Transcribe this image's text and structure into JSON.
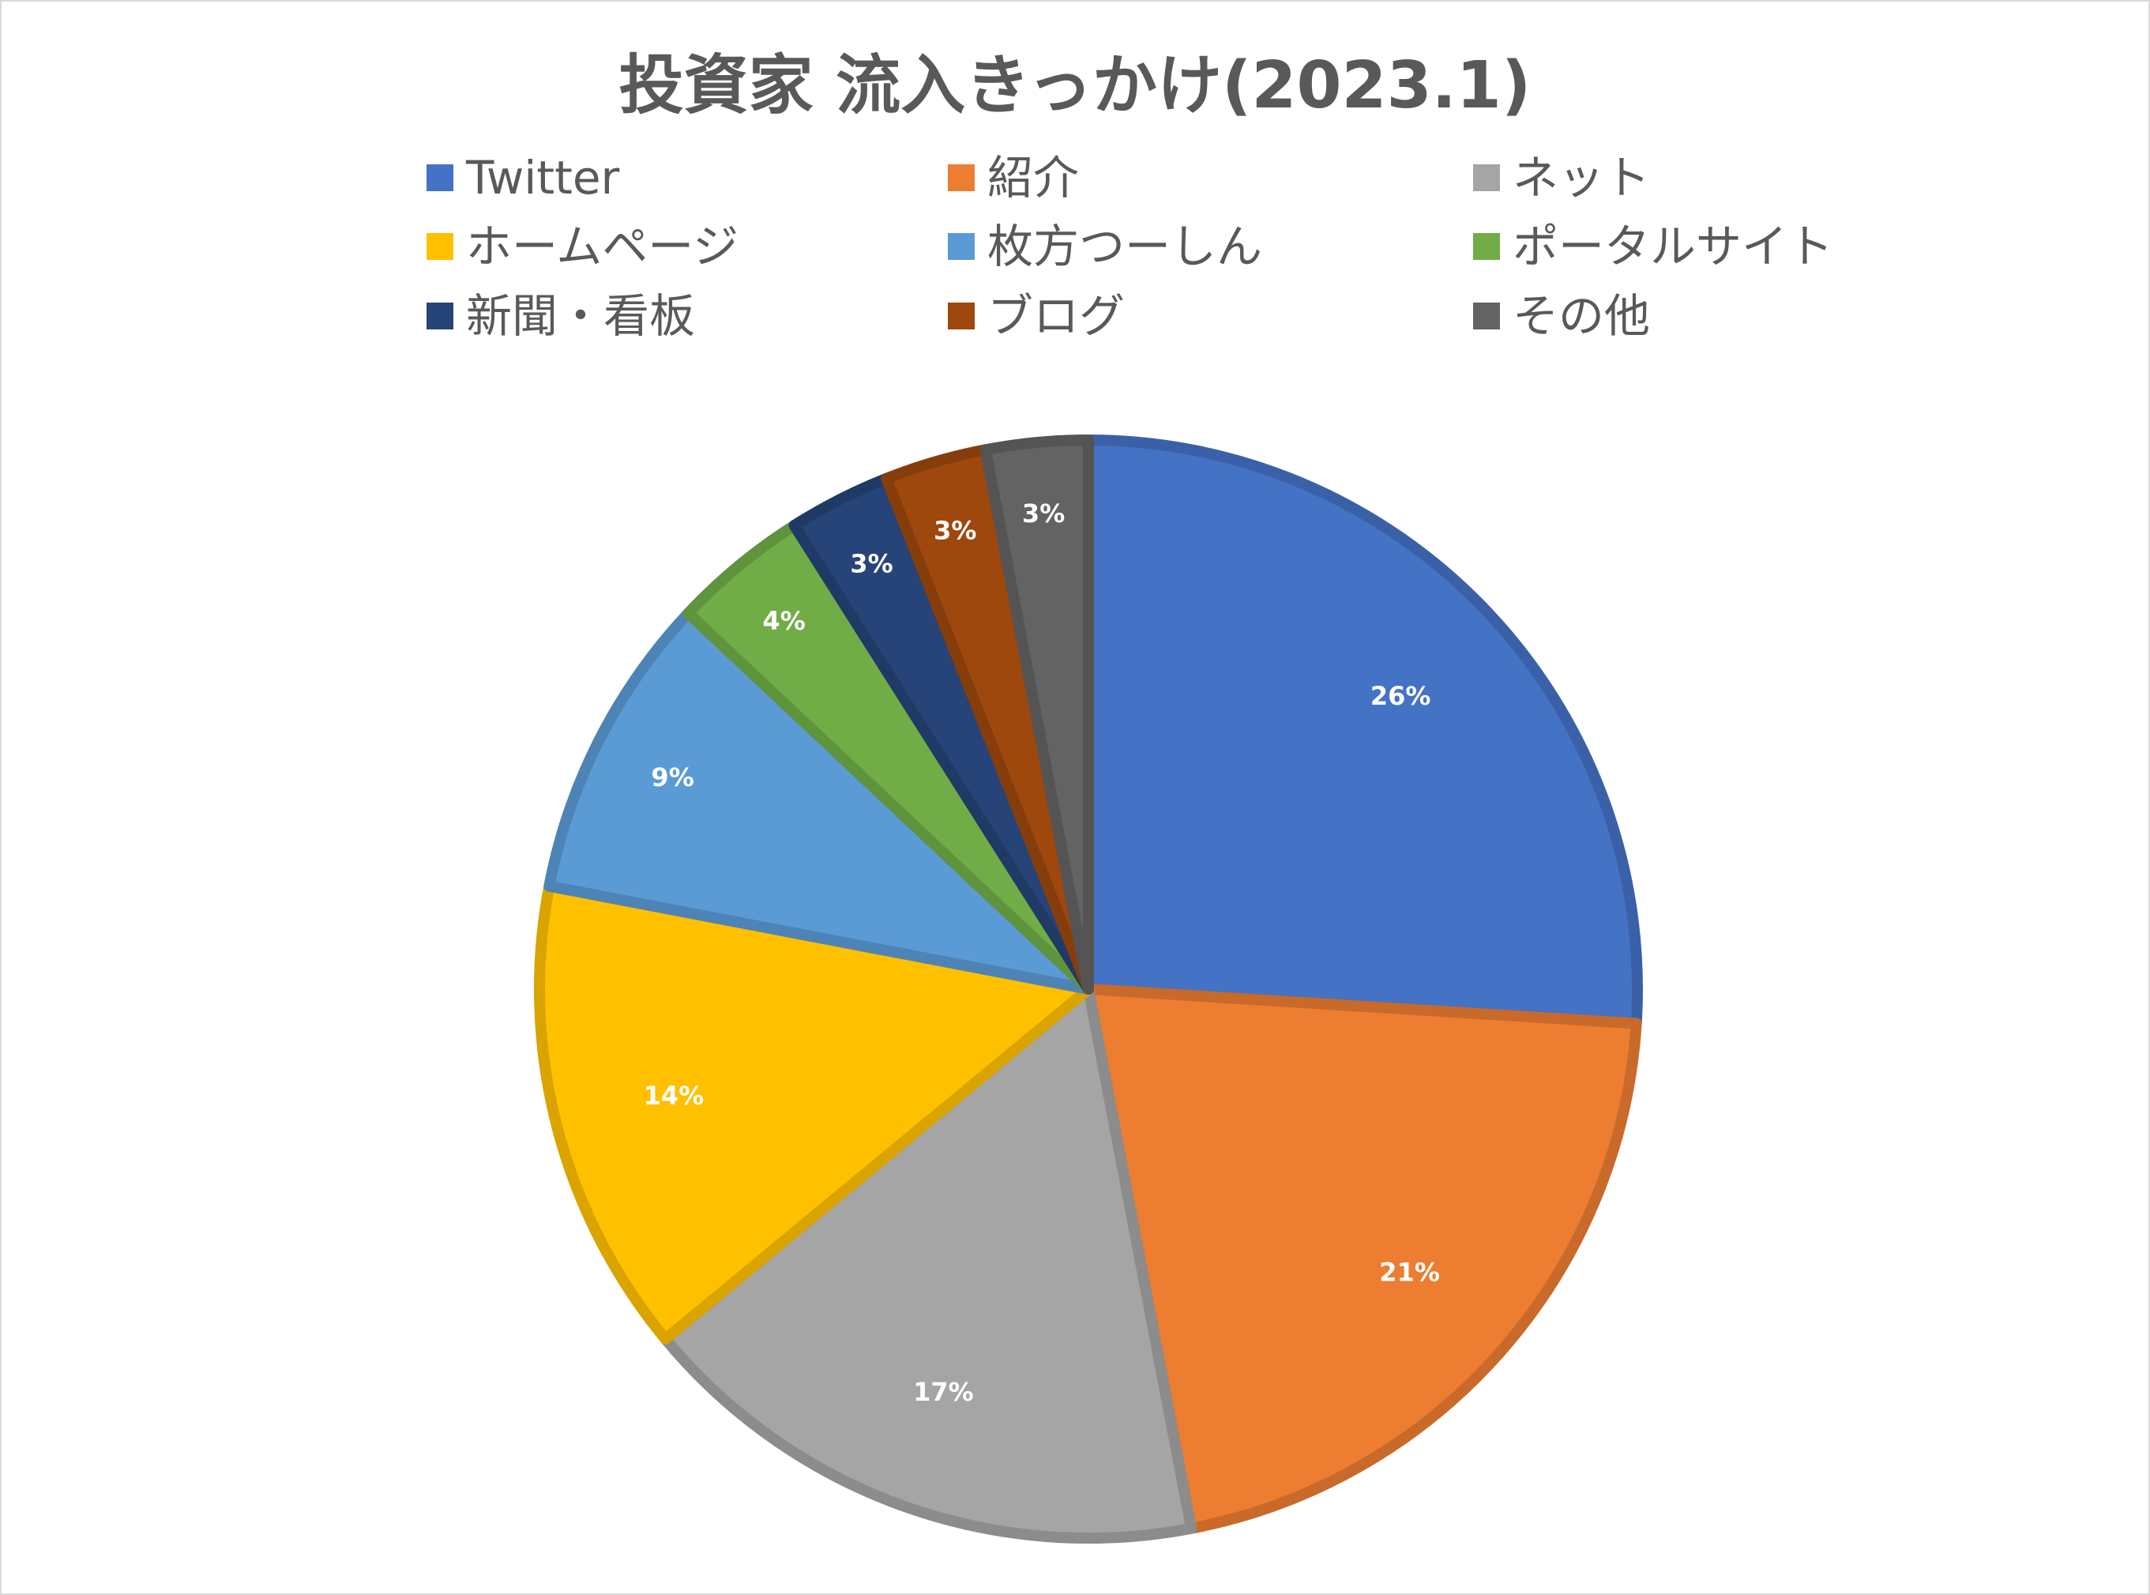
{
  "chart_data": {
    "type": "pie",
    "title": "投資家 流入きっかけ(2023.1)",
    "legend_position": "top",
    "slices": [
      {
        "label": "Twitter",
        "value": 26,
        "display": "26%",
        "color": "#4472C4"
      },
      {
        "label": "紹介",
        "value": 21,
        "display": "21%",
        "color": "#ED7D31"
      },
      {
        "label": "ネット",
        "value": 17,
        "display": "17%",
        "color": "#A5A5A5"
      },
      {
        "label": "ホームページ",
        "value": 14,
        "display": "14%",
        "color": "#FFC000"
      },
      {
        "label": "枚方つーしん",
        "value": 9,
        "display": "9%",
        "color": "#5B9BD5"
      },
      {
        "label": "ポータルサイト",
        "value": 4,
        "display": "4%",
        "color": "#70AD47"
      },
      {
        "label": "新聞・看板",
        "value": 3,
        "display": "3%",
        "color": "#264478"
      },
      {
        "label": "ブログ",
        "value": 3,
        "display": "3%",
        "color": "#9E480E"
      },
      {
        "label": "その他",
        "value": 3,
        "display": "3%",
        "color": "#636363"
      }
    ]
  }
}
